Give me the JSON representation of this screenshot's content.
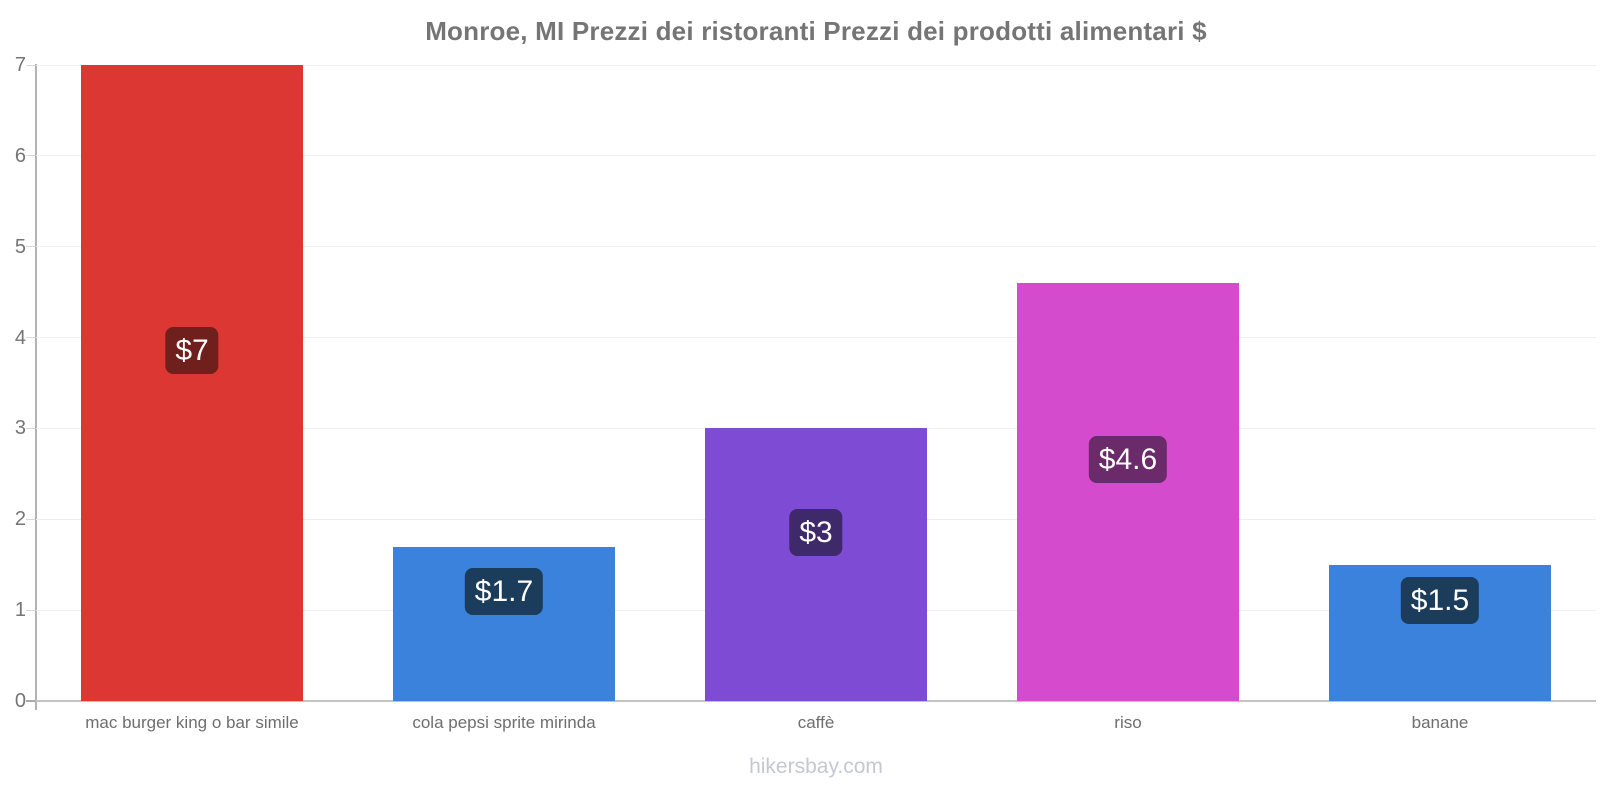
{
  "footer": {
    "watermark": "hikersbay.com"
  },
  "chart_data": {
    "type": "bar",
    "title": "Monroe, MI Prezzi dei ristoranti Prezzi dei prodotti alimentari $",
    "categories": [
      "mac burger king o bar simile",
      "cola pepsi sprite mirinda",
      "caffè",
      "riso",
      "banane"
    ],
    "values": [
      7,
      1.7,
      3,
      4.6,
      1.5
    ],
    "value_labels": [
      "$7",
      "$1.7",
      "$3",
      "$4.6",
      "$1.5"
    ],
    "bar_colors": [
      "#dc3732",
      "#3a82db",
      "#7e4bd4",
      "#d44bce",
      "#3a82db"
    ],
    "badge_colors": [
      "#6f1f1c",
      "#1c3c5c",
      "#3e296b",
      "#6b2a69",
      "#1c3c5c"
    ],
    "currency_symbol": "$",
    "xlabel": "",
    "ylabel": "",
    "ylim": [
      0,
      7
    ],
    "yticks": [
      0,
      1,
      2,
      3,
      4,
      5,
      6,
      7
    ],
    "grid": true,
    "legend": false
  }
}
